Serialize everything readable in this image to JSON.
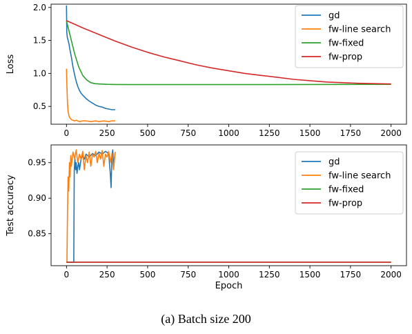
{
  "caption": "(a) Batch size 200",
  "colors": {
    "gd": "#1f77b4",
    "fw-line search": "#ff7f0e",
    "fw-fixed": "#2ca02c",
    "fw-prop": "#d62728"
  },
  "chart_data": [
    {
      "type": "line",
      "title": "",
      "xlabel": "",
      "ylabel": "Loss",
      "xlim": [
        -95,
        2095
      ],
      "ylim": [
        0.23,
        2.05
      ],
      "xticks": [
        0,
        250,
        500,
        750,
        1000,
        1250,
        1500,
        1750,
        2000
      ],
      "yticks": [
        0.5,
        1.0,
        1.5,
        2.0
      ],
      "ytick_labels": [
        "0.5",
        "1.0",
        "1.5",
        "2.0"
      ],
      "legend_position": "top-right",
      "series": [
        {
          "name": "gd",
          "x": [
            0,
            2,
            5,
            10,
            15,
            20,
            30,
            40,
            50,
            60,
            70,
            80,
            90,
            100,
            120,
            140,
            160,
            180,
            200,
            220,
            240,
            260,
            280,
            300
          ],
          "y": [
            2.03,
            1.62,
            1.55,
            1.5,
            1.45,
            1.38,
            1.25,
            1.1,
            0.98,
            0.88,
            0.8,
            0.74,
            0.7,
            0.67,
            0.62,
            0.58,
            0.55,
            0.52,
            0.5,
            0.49,
            0.47,
            0.46,
            0.45,
            0.45
          ]
        },
        {
          "name": "fw-line search",
          "x": [
            0,
            3,
            6,
            10,
            15,
            20,
            30,
            40,
            50,
            60,
            80,
            100,
            120,
            150,
            180,
            200,
            230,
            260,
            280,
            300
          ],
          "y": [
            1.07,
            0.8,
            0.55,
            0.42,
            0.36,
            0.33,
            0.3,
            0.29,
            0.28,
            0.29,
            0.27,
            0.28,
            0.28,
            0.27,
            0.28,
            0.27,
            0.28,
            0.27,
            0.28,
            0.28
          ]
        },
        {
          "name": "fw-fixed",
          "x": [
            0,
            25,
            50,
            75,
            100,
            125,
            150,
            175,
            200,
            250,
            300,
            400,
            600,
            1000,
            1500,
            2000
          ],
          "y": [
            1.8,
            1.55,
            1.3,
            1.1,
            0.97,
            0.9,
            0.86,
            0.845,
            0.84,
            0.835,
            0.832,
            0.83,
            0.83,
            0.83,
            0.832,
            0.835
          ]
        },
        {
          "name": "fw-prop",
          "x": [
            0,
            100,
            200,
            300,
            400,
            500,
            600,
            700,
            800,
            900,
            1000,
            1100,
            1200,
            1300,
            1400,
            1500,
            1600,
            1700,
            1800,
            1900,
            2000
          ],
          "y": [
            1.8,
            1.69,
            1.59,
            1.49,
            1.4,
            1.32,
            1.25,
            1.19,
            1.13,
            1.08,
            1.04,
            1.0,
            0.97,
            0.94,
            0.91,
            0.89,
            0.87,
            0.86,
            0.85,
            0.845,
            0.84
          ]
        }
      ]
    },
    {
      "type": "line",
      "title": "",
      "xlabel": "Epoch",
      "ylabel": "Test accuracy",
      "xlim": [
        -95,
        2095
      ],
      "ylim": [
        0.805,
        0.975
      ],
      "xticks": [
        0,
        250,
        500,
        750,
        1000,
        1250,
        1500,
        1750,
        2000
      ],
      "yticks": [
        0.85,
        0.9,
        0.95
      ],
      "ytick_labels": [
        "0.85",
        "0.90",
        "0.95"
      ],
      "legend_position": "top-right",
      "series": [
        {
          "name": "gd",
          "x": [
            0,
            45,
            48,
            52,
            56,
            60,
            65,
            70,
            75,
            80,
            90,
            100,
            110,
            120,
            140,
            160,
            180,
            200,
            220,
            240,
            260,
            270,
            275,
            280,
            285,
            290,
            300
          ],
          "y": [
            0.81,
            0.81,
            0.94,
            0.955,
            0.94,
            0.95,
            0.935,
            0.945,
            0.95,
            0.94,
            0.955,
            0.96,
            0.955,
            0.962,
            0.958,
            0.963,
            0.96,
            0.965,
            0.962,
            0.966,
            0.963,
            0.935,
            0.915,
            0.96,
            0.968,
            0.945,
            0.965
          ]
        },
        {
          "name": "fw-line search",
          "x": [
            0,
            3,
            6,
            10,
            14,
            18,
            22,
            26,
            30,
            40,
            50,
            60,
            70,
            80,
            90,
            100,
            110,
            120,
            130,
            140,
            150,
            160,
            170,
            180,
            190,
            200,
            210,
            220,
            230,
            240,
            250,
            260,
            270,
            280,
            290,
            300
          ],
          "y": [
            0.81,
            0.81,
            0.88,
            0.93,
            0.91,
            0.95,
            0.93,
            0.96,
            0.945,
            0.965,
            0.955,
            0.968,
            0.95,
            0.962,
            0.955,
            0.966,
            0.94,
            0.96,
            0.95,
            0.965,
            0.945,
            0.962,
            0.958,
            0.966,
            0.95,
            0.963,
            0.955,
            0.967,
            0.945,
            0.962,
            0.958,
            0.966,
            0.95,
            0.963,
            0.94,
            0.965
          ]
        },
        {
          "name": "fw-fixed",
          "x": [
            0,
            2000
          ],
          "y": [
            0.81,
            0.81
          ]
        },
        {
          "name": "fw-prop",
          "x": [
            0,
            2000
          ],
          "y": [
            0.81,
            0.81
          ]
        }
      ]
    }
  ]
}
